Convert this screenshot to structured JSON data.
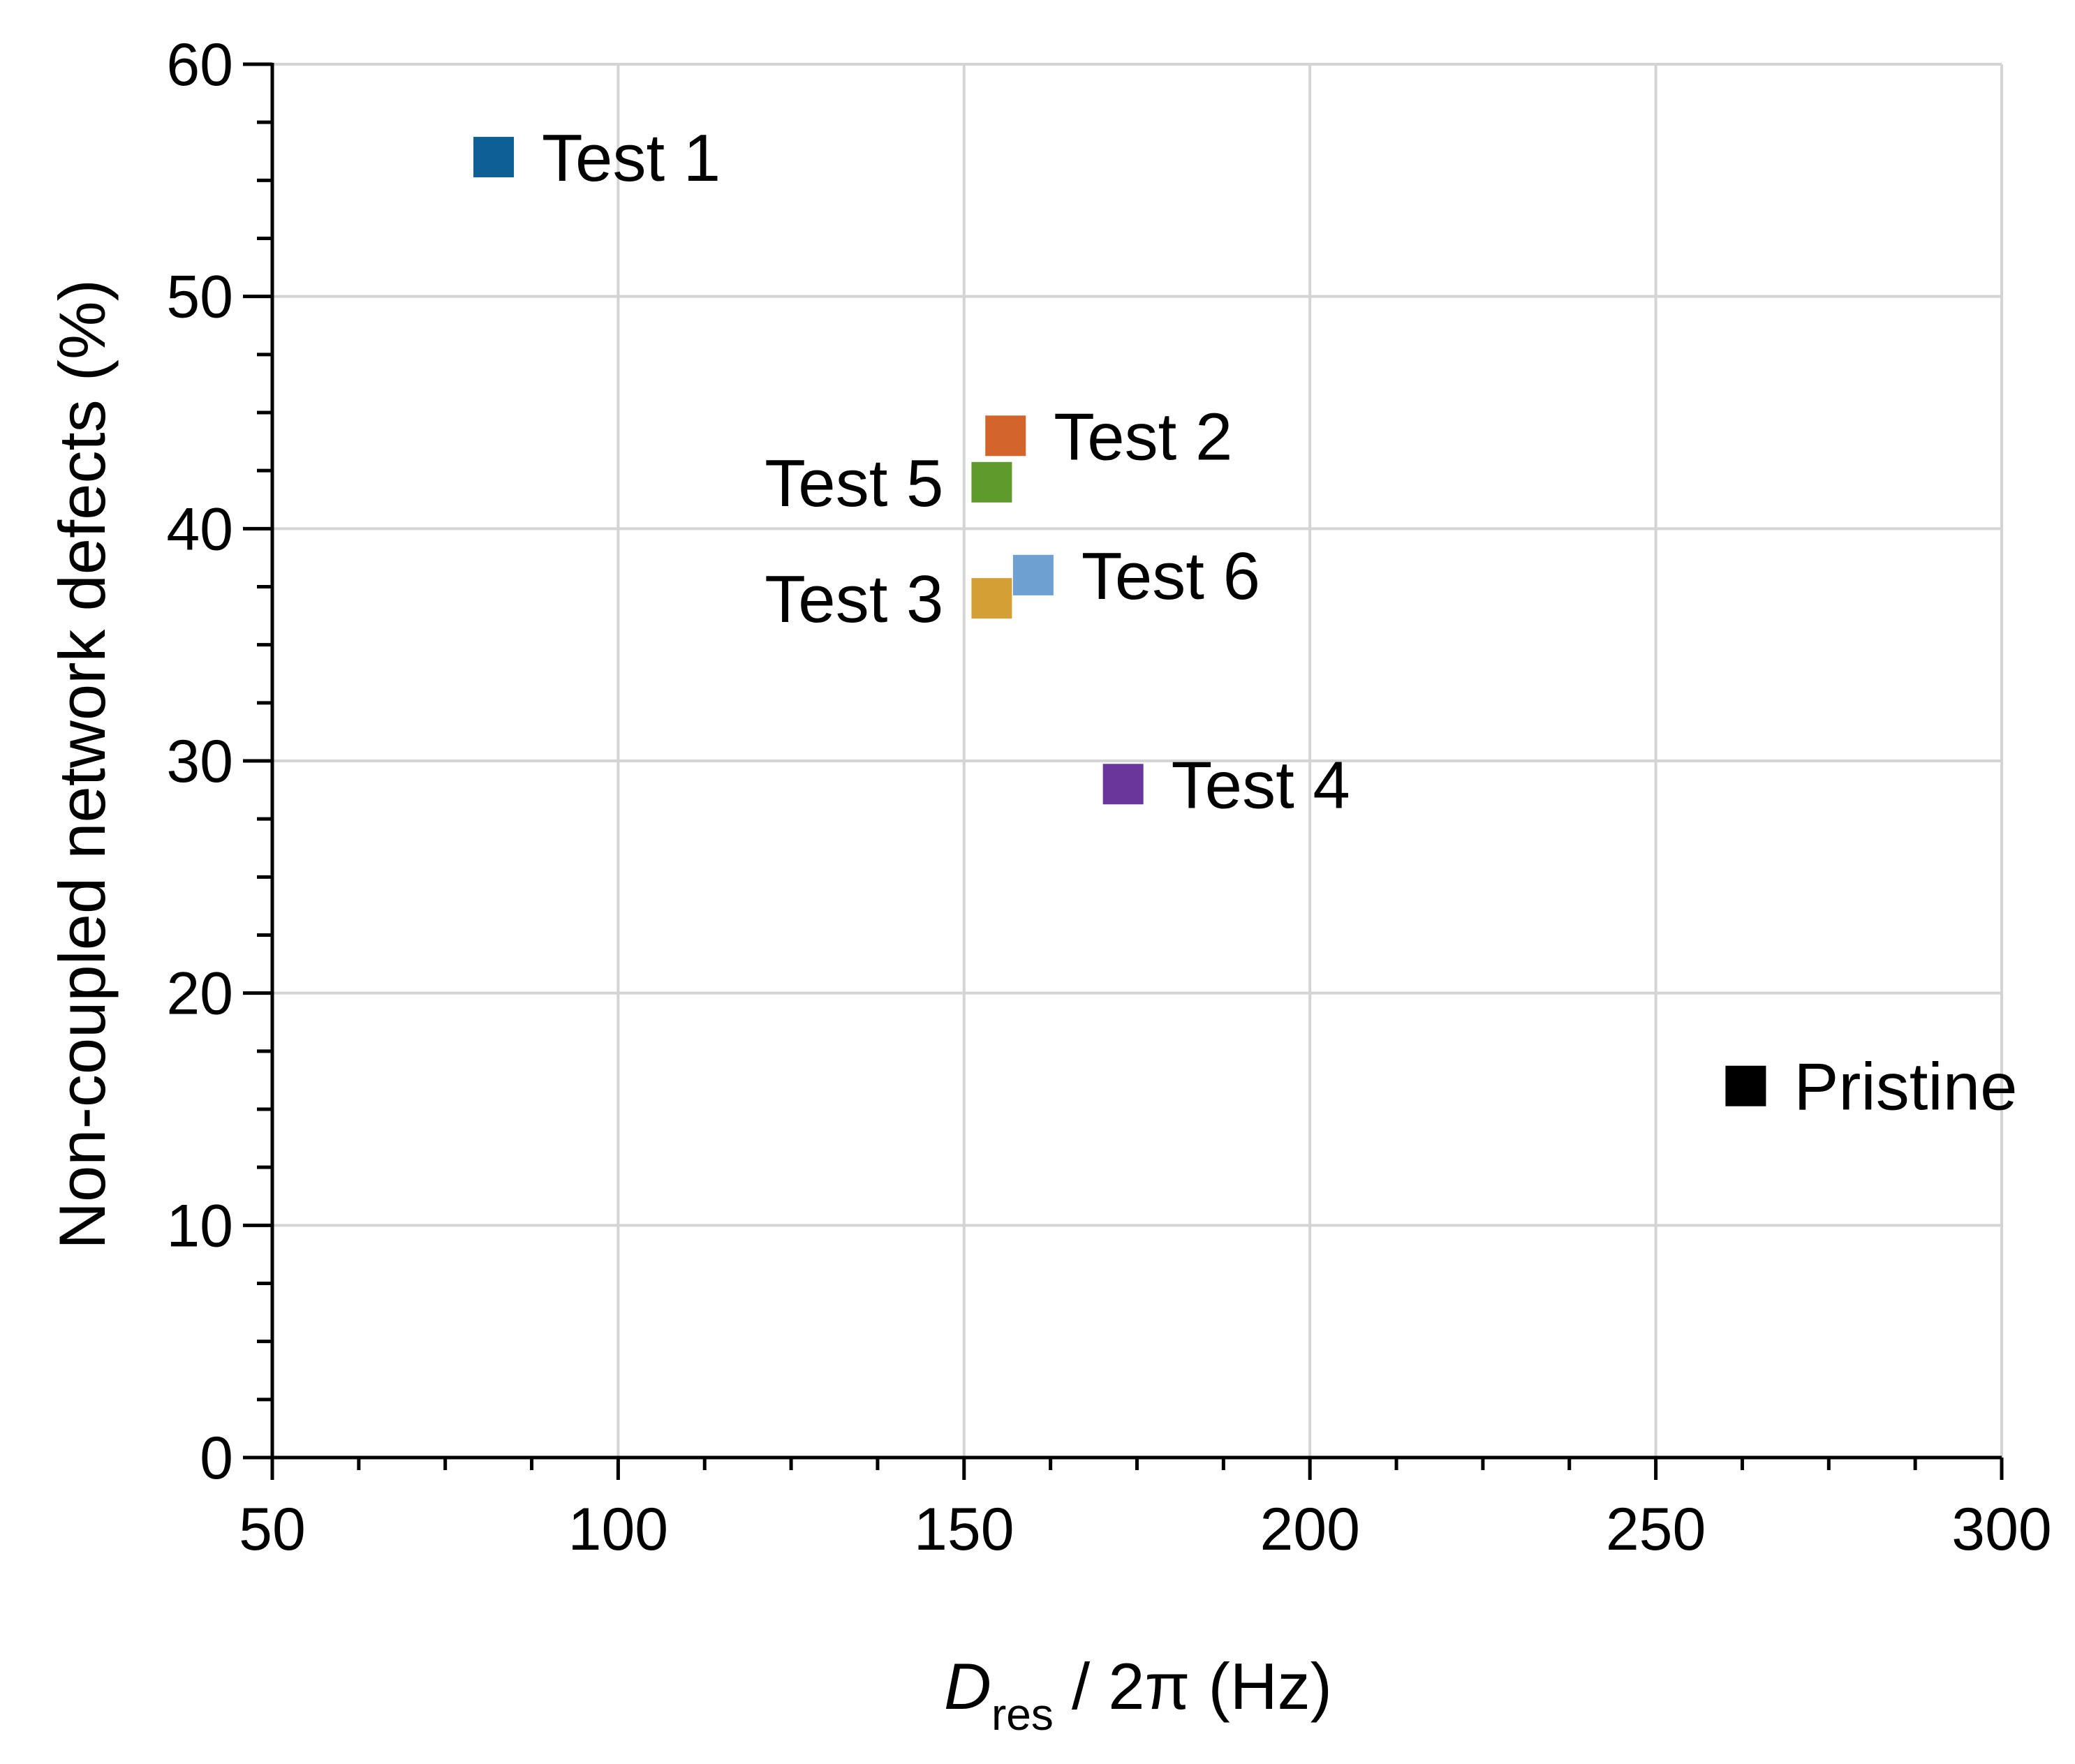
{
  "chart_data": {
    "type": "scatter",
    "xlabel": {
      "main": "D",
      "sub": "res",
      "rest": " / 2π (Hz)"
    },
    "ylabel": "Non-coupled network defects (%)",
    "xlim": [
      50,
      300
    ],
    "ylim": [
      0,
      60
    ],
    "xticks": [
      50,
      100,
      150,
      200,
      250,
      300
    ],
    "yticks": [
      0,
      10,
      20,
      30,
      40,
      50,
      60
    ],
    "x_minor_step": 12.5,
    "y_minor_step": 2.5,
    "grid": true,
    "points": [
      {
        "name": "Test 1",
        "x": 82,
        "y": 56,
        "color": "#0e6094",
        "label_side": "right"
      },
      {
        "name": "Test 2",
        "x": 156,
        "y": 44,
        "color": "#d2642c",
        "label_side": "right"
      },
      {
        "name": "Test 5",
        "x": 154,
        "y": 42,
        "color": "#5f9a2c",
        "label_side": "left"
      },
      {
        "name": "Test 6",
        "x": 160,
        "y": 38,
        "color": "#6ea0d2",
        "label_side": "right"
      },
      {
        "name": "Test 3",
        "x": 154,
        "y": 37,
        "color": "#d4a035",
        "label_side": "left"
      },
      {
        "name": "Test 4",
        "x": 173,
        "y": 29,
        "color": "#6a369c",
        "label_side": "right"
      },
      {
        "name": "Pristine",
        "x": 263,
        "y": 16,
        "color": "#000000",
        "label_side": "right"
      }
    ]
  }
}
